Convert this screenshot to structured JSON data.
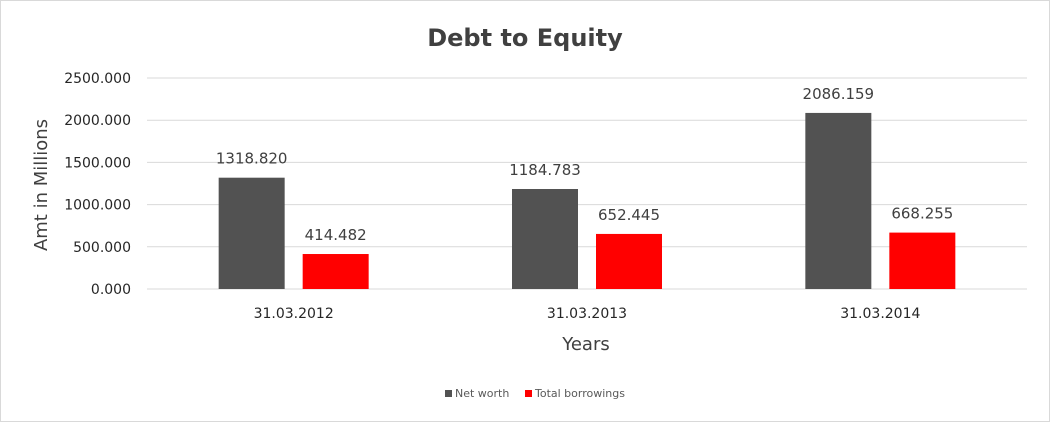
{
  "chart_data": {
    "type": "bar",
    "title": "Debt to Equity",
    "xlabel": "Years",
    "ylabel": "Amt in Millions",
    "categories": [
      "31.03.2012",
      "31.03.2013",
      "31.03.2014"
    ],
    "series": [
      {
        "name": "Net worth",
        "values": [
          1318.82,
          1184.783,
          2086.159
        ],
        "color": "#525252"
      },
      {
        "name": "Total borrowings",
        "values": [
          414.482,
          652.445,
          668.255
        ],
        "color": "#ff0000"
      }
    ],
    "data_labels": [
      [
        "1318.820",
        "1184.783",
        "2086.159"
      ],
      [
        "414.482",
        "652.445",
        "668.255"
      ]
    ],
    "yticks": [
      "0.000",
      "500.000",
      "1000.000",
      "1500.000",
      "2000.000",
      "2500.000"
    ],
    "ylim": [
      0,
      2500
    ],
    "grid": true,
    "legend_position": "bottom"
  }
}
